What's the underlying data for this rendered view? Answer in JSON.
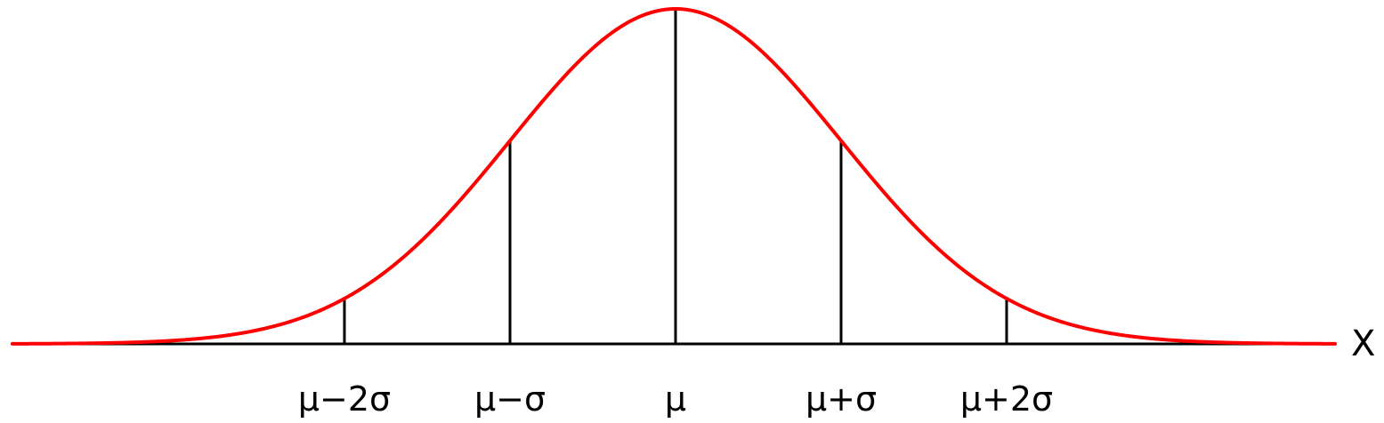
{
  "chart_data": {
    "type": "line",
    "title": "",
    "xlabel": "X",
    "ylabel": "",
    "distribution": "normal",
    "mean": 0,
    "sd": 1,
    "xlim": [
      -4,
      4
    ],
    "curve_color": "#ff0000",
    "line_color": "#000000",
    "markers": [
      {
        "x": -2,
        "label": "μ−2σ"
      },
      {
        "x": -1,
        "label": "μ−σ"
      },
      {
        "x": 0,
        "label": "μ"
      },
      {
        "x": 1,
        "label": "μ+σ"
      },
      {
        "x": 2,
        "label": "μ+2σ"
      }
    ]
  }
}
